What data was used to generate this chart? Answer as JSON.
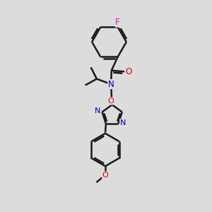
{
  "background_color": "#dcdcdc",
  "bond_color": "#1a1a1a",
  "bond_width": 1.8,
  "atom_colors": {
    "F": "#ee00ee",
    "O": "#dd0000",
    "N": "#0000cc",
    "C": "#1a1a1a"
  },
  "font_size_atoms": 8.5,
  "figsize": [
    3.0,
    3.0
  ],
  "dpi": 100
}
